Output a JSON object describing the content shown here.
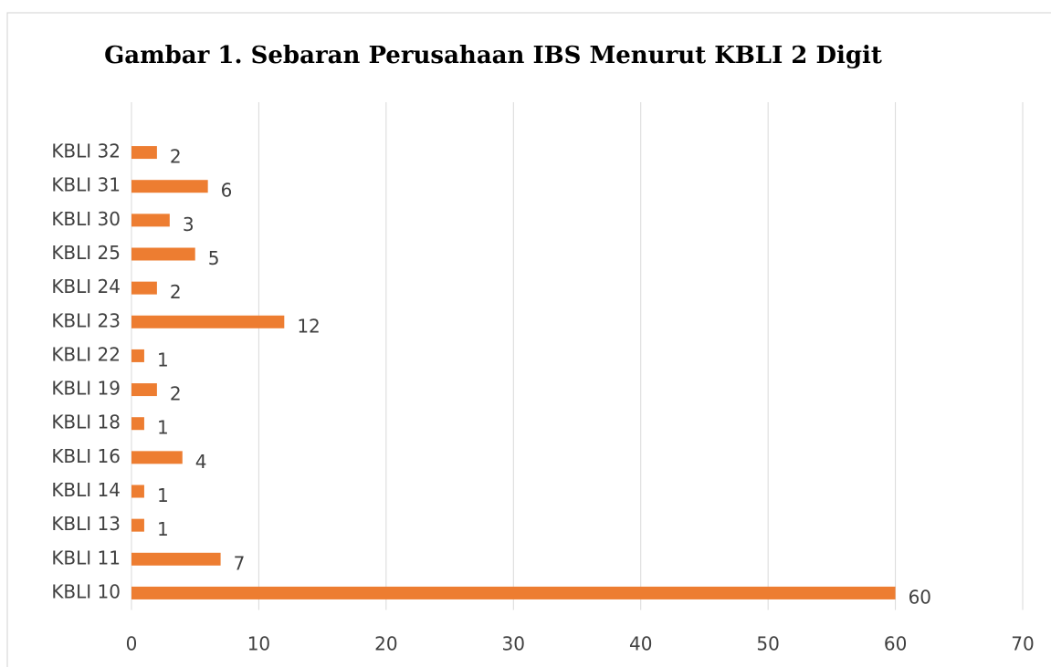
{
  "chart_data": {
    "type": "bar",
    "orientation": "horizontal",
    "title": "Gambar 1. Sebaran Perusahaan IBS Menurut KBLI 2 Digit",
    "categories": [
      "KBLI 10",
      "KBLI 11",
      "KBLI 13",
      "KBLI 14",
      "KBLI 16",
      "KBLI 18",
      "KBLI 19",
      "KBLI 22",
      "KBLI 23",
      "KBLI 24",
      "KBLI 25",
      "KBLI 30",
      "KBLI 31",
      "KBLI 32"
    ],
    "values": [
      60,
      7,
      1,
      1,
      4,
      1,
      2,
      1,
      12,
      2,
      5,
      3,
      6,
      2
    ],
    "color": "#ed7d31",
    "xlim": [
      0,
      70
    ],
    "xticks": [
      0,
      10,
      20,
      30,
      40,
      50,
      60,
      70
    ],
    "grid": true
  }
}
